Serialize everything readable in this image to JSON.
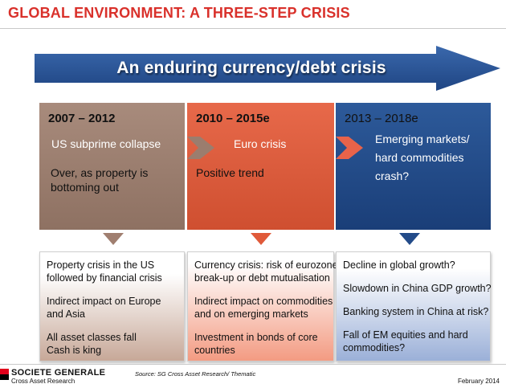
{
  "title": "GLOBAL ENVIRONMENT: A THREE-STEP CRISIS",
  "banner": {
    "text": "An enduring currency/debt crisis",
    "color": "#2c5597"
  },
  "phases": [
    {
      "period": "2007 – 2012",
      "heading_lines": [
        "US subprime collapse"
      ],
      "note_lines": [
        "Over, as property is",
        "bottoming out"
      ],
      "color": "#9b7d6e",
      "details": [
        [
          "Property crisis in the US",
          "followed by financial crisis"
        ],
        [
          "Indirect impact on Europe",
          "and Asia"
        ],
        [
          "All asset classes fall",
          "Cash is king"
        ]
      ]
    },
    {
      "period": "2010 – 2015e",
      "heading_lines": [
        "Euro crisis"
      ],
      "note_lines": [
        "Positive trend"
      ],
      "color": "#e05a3a",
      "details": [
        [
          "Currency crisis: risk of eurozone",
          "break-up or debt mutualisation"
        ],
        [
          "Indirect impact on commodities",
          "and on emerging markets"
        ],
        [
          "Investment in bonds of core",
          "countries"
        ]
      ]
    },
    {
      "period": "2013 – 2018e",
      "heading_lines": [
        "Emerging markets/",
        "hard commodities",
        "crash?"
      ],
      "note_lines": [],
      "color": "#234b89",
      "details": [
        [
          "Decline in global growth?"
        ],
        [
          "Slowdown in China GDP growth?"
        ],
        [
          "Banking system in China at risk?"
        ],
        [
          "Fall of EM equities and hard",
          "commodities?"
        ]
      ]
    }
  ],
  "footer": {
    "brand": "SOCIETE GENERALE",
    "brand_sub": "Cross Asset Research",
    "source": "Source: SG Cross Asset Research/ Thematic",
    "date": "February 2014",
    "brand_colors": [
      "#e0001b",
      "#000000"
    ]
  }
}
